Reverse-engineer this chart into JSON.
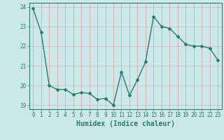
{
  "x": [
    0,
    1,
    2,
    3,
    4,
    5,
    6,
    7,
    8,
    9,
    10,
    11,
    12,
    13,
    14,
    15,
    16,
    17,
    18,
    19,
    20,
    21,
    22,
    23
  ],
  "y": [
    23.9,
    22.7,
    20.0,
    19.8,
    19.8,
    19.55,
    19.65,
    19.6,
    19.3,
    19.35,
    19.0,
    20.7,
    19.5,
    20.3,
    21.2,
    23.5,
    23.0,
    22.9,
    22.5,
    22.1,
    22.0,
    22.0,
    21.9,
    21.3
  ],
  "xlabel": "Humidex (Indice chaleur)",
  "xlim": [
    -0.5,
    23.5
  ],
  "ylim": [
    18.8,
    24.2
  ],
  "yticks": [
    19,
    20,
    21,
    22,
    23,
    24
  ],
  "xticks": [
    0,
    1,
    2,
    3,
    4,
    5,
    6,
    7,
    8,
    9,
    10,
    11,
    12,
    13,
    14,
    15,
    16,
    17,
    18,
    19,
    20,
    21,
    22,
    23
  ],
  "line_color": "#2d7b6e",
  "marker": "D",
  "marker_size": 2.0,
  "bg_color": "#cce8e8",
  "grid_color_x": "#d4a0a0",
  "grid_color_y": "#d4b8b8",
  "axis_color": "#2d7b6e",
  "tick_color": "#2d7b6e",
  "label_color": "#2d7b6e",
  "tick_fontsize": 5.5,
  "xlabel_fontsize": 7.0,
  "linewidth": 1.0
}
